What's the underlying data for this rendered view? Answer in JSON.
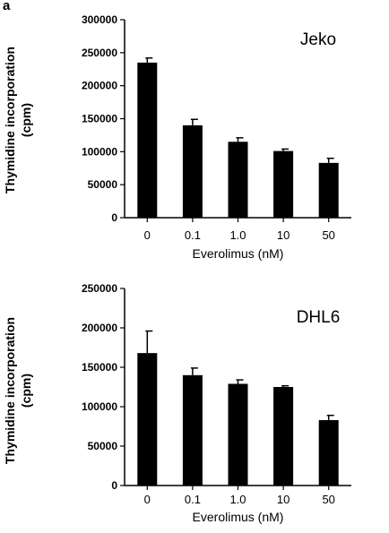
{
  "panel_label": "a",
  "chart_data": [
    {
      "type": "bar",
      "annotation": "Jeko",
      "categories": [
        "0",
        "0.1",
        "1.0",
        "10",
        "50"
      ],
      "values": [
        235000,
        140000,
        115000,
        101000,
        83000
      ],
      "errors": [
        7000,
        9000,
        6000,
        3000,
        7000
      ],
      "xlabel": "Everolimus (nM)",
      "ylabel": [
        "Thymidine incorporation",
        "(cpm)"
      ],
      "ylim": [
        0,
        300000
      ],
      "yticks": [
        0,
        50000,
        100000,
        150000,
        200000,
        250000,
        300000
      ],
      "ytick_labels": [
        "0",
        "50000",
        "100000",
        "150000",
        "200000",
        "250000",
        "300000"
      ],
      "bar_color": "#000000",
      "grid": false
    },
    {
      "type": "bar",
      "annotation": "DHL6",
      "categories": [
        "0",
        "0.1",
        "1.0",
        "10",
        "50"
      ],
      "values": [
        168000,
        140000,
        129000,
        125000,
        83000
      ],
      "errors": [
        28000,
        9000,
        5000,
        1500,
        6000
      ],
      "xlabel": "Everolimus (nM)",
      "ylabel": [
        "Thymidine incorporation",
        "(cpm)"
      ],
      "ylim": [
        0,
        250000
      ],
      "yticks": [
        0,
        50000,
        100000,
        150000,
        200000,
        250000
      ],
      "ytick_labels": [
        "0",
        "50000",
        "100000",
        "150000",
        "200000",
        "250000"
      ],
      "bar_color": "#000000",
      "grid": false
    }
  ]
}
